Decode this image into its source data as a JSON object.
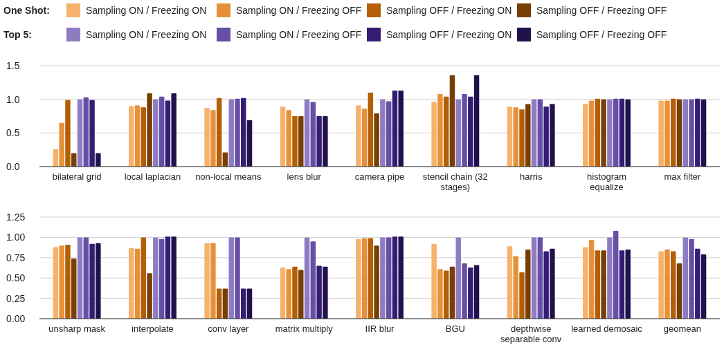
{
  "chart_data": [
    {
      "type": "bar",
      "annotations": [
        "One Shot:",
        "Top 5:"
      ],
      "legend": "top left",
      "grid": "y",
      "categories": [
        "bilateral grid",
        "local laplacian",
        "non-local means",
        "lens blur",
        "camera pipe",
        "stencil chain (32 stages)",
        "harris",
        "histogram equalize",
        "max filter"
      ],
      "ylim": [
        0,
        1.5
      ],
      "yticks": [
        {
          "value": 0,
          "label": "0.0"
        },
        {
          "value": 0.5,
          "label": "0.5"
        },
        {
          "value": 1,
          "label": "1.0"
        },
        {
          "value": 1.5,
          "label": "1.5"
        }
      ],
      "series": [
        {
          "name": "Sampling ON / Freezing ON",
          "color": "#f6b26b",
          "values": [
            0.26,
            0.9,
            0.87,
            0.89,
            0.91,
            0.96,
            0.89,
            0.93,
            0.98
          ]
        },
        {
          "name": "Sampling ON / Freezing OFF",
          "color": "#e69138",
          "values": [
            0.65,
            0.91,
            0.84,
            0.84,
            0.86,
            1.08,
            0.88,
            0.98,
            0.98
          ]
        },
        {
          "name": "Sampling OFF / Freezing ON",
          "color": "#b45f06",
          "values": [
            0.99,
            0.88,
            1.02,
            0.75,
            1.1,
            1.04,
            0.85,
            1.01,
            1.01
          ]
        },
        {
          "name": "Sampling OFF / Freezing OFF",
          "color": "#783f04",
          "values": [
            0.2,
            1.09,
            0.21,
            0.75,
            0.79,
            1.36,
            0.93,
            1.0,
            1.0
          ]
        },
        {
          "name": "Sampling ON / Freezing ON",
          "color": "#8e7cc3",
          "values": [
            1.0,
            1.0,
            1.0,
            1.0,
            1.0,
            1.0,
            1.0,
            1.0,
            1.0
          ]
        },
        {
          "name": "Sampling ON / Freezing OFF",
          "color": "#674ea7",
          "values": [
            1.03,
            1.04,
            1.01,
            0.96,
            0.97,
            1.08,
            1.0,
            1.01,
            1.0
          ]
        },
        {
          "name": "Sampling OFF / Freezing ON",
          "color": "#351c75",
          "values": [
            0.99,
            0.98,
            1.02,
            0.75,
            1.13,
            1.04,
            0.89,
            1.01,
            1.01
          ]
        },
        {
          "name": "Sampling OFF / Freezing OFF",
          "color": "#20124d",
          "values": [
            0.2,
            1.09,
            0.69,
            0.75,
            1.13,
            1.36,
            0.93,
            1.0,
            1.0
          ]
        }
      ]
    },
    {
      "type": "bar",
      "grid": "y",
      "categories": [
        "unsharp mask",
        "interpolate",
        "conv layer",
        "matrix multiply",
        "IIR blur",
        "BGU",
        "depthwise separable conv",
        "learned demosaic",
        "geomean"
      ],
      "ylim": [
        0,
        1.25
      ],
      "yticks": [
        {
          "value": 0,
          "label": "0.00"
        },
        {
          "value": 0.25,
          "label": "0.25"
        },
        {
          "value": 0.5,
          "label": "0.50"
        },
        {
          "value": 0.75,
          "label": "0.75"
        },
        {
          "value": 1,
          "label": "1.00"
        },
        {
          "value": 1.25,
          "label": "1.25"
        }
      ],
      "series": [
        {
          "color": "#f6b26b",
          "values": [
            0.88,
            0.87,
            0.93,
            0.63,
            0.98,
            0.92,
            0.89,
            0.88,
            0.83
          ]
        },
        {
          "color": "#e69138",
          "values": [
            0.9,
            0.86,
            0.93,
            0.61,
            0.99,
            0.61,
            0.77,
            0.97,
            0.85
          ]
        },
        {
          "color": "#b45f06",
          "values": [
            0.91,
            1.0,
            0.37,
            0.64,
            0.99,
            0.59,
            0.57,
            0.84,
            0.83
          ]
        },
        {
          "color": "#783f04",
          "values": [
            0.74,
            0.56,
            0.37,
            0.6,
            0.9,
            0.64,
            0.85,
            0.84,
            0.68
          ]
        },
        {
          "color": "#8e7cc3",
          "values": [
            1.0,
            1.0,
            1.0,
            1.0,
            1.0,
            1.0,
            1.0,
            1.0,
            1.0
          ]
        },
        {
          "color": "#674ea7",
          "values": [
            1.0,
            0.98,
            1.0,
            0.95,
            1.0,
            0.68,
            1.0,
            1.08,
            0.98
          ]
        },
        {
          "color": "#351c75",
          "values": [
            0.92,
            1.01,
            0.37,
            0.65,
            1.01,
            0.63,
            0.83,
            0.84,
            0.86
          ]
        },
        {
          "color": "#20124d",
          "values": [
            0.93,
            1.01,
            0.37,
            0.64,
            1.01,
            0.66,
            0.86,
            0.85,
            0.79
          ]
        }
      ]
    }
  ]
}
